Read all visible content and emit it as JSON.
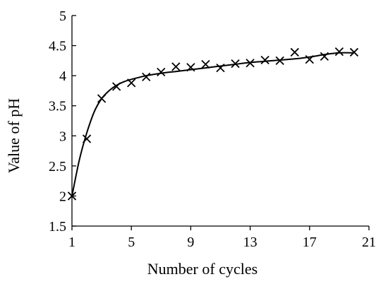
{
  "chart_data": {
    "type": "scatter",
    "title": "",
    "xlabel": "Number of cycles",
    "ylabel": "Value of pH",
    "xlim": [
      1,
      21
    ],
    "ylim": [
      1.5,
      5
    ],
    "xticks": [
      "1",
      "5",
      "9",
      "13",
      "17",
      "21"
    ],
    "yticks": [
      "1.5",
      "2",
      "2.5",
      "3",
      "3.5",
      "4",
      "4.5",
      "5"
    ],
    "grid": false,
    "legend": "none",
    "marker": "x",
    "points": [
      {
        "x": 1,
        "y": 2.0
      },
      {
        "x": 2,
        "y": 2.95
      },
      {
        "x": 3,
        "y": 3.62
      },
      {
        "x": 4,
        "y": 3.82
      },
      {
        "x": 5,
        "y": 3.88
      },
      {
        "x": 6,
        "y": 3.98
      },
      {
        "x": 7,
        "y": 4.06
      },
      {
        "x": 8,
        "y": 4.15
      },
      {
        "x": 9,
        "y": 4.14
      },
      {
        "x": 10,
        "y": 4.19
      },
      {
        "x": 11,
        "y": 4.13
      },
      {
        "x": 12,
        "y": 4.2
      },
      {
        "x": 13,
        "y": 4.21
      },
      {
        "x": 14,
        "y": 4.26
      },
      {
        "x": 15,
        "y": 4.25
      },
      {
        "x": 16,
        "y": 4.39
      },
      {
        "x": 17,
        "y": 4.27
      },
      {
        "x": 18,
        "y": 4.32
      },
      {
        "x": 19,
        "y": 4.4
      },
      {
        "x": 20,
        "y": 4.39
      }
    ],
    "trend_line": {
      "x": [
        1,
        1.5,
        2,
        2.5,
        3,
        3.5,
        4,
        4.5,
        5,
        5.5,
        6,
        7,
        8,
        9,
        10,
        11,
        12,
        13,
        14,
        15,
        16,
        17,
        18,
        19,
        20
      ],
      "y": [
        2.0,
        2.6,
        3.05,
        3.4,
        3.62,
        3.75,
        3.84,
        3.9,
        3.94,
        3.97,
        4.0,
        4.04,
        4.07,
        4.1,
        4.13,
        4.16,
        4.19,
        4.22,
        4.24,
        4.26,
        4.28,
        4.31,
        4.35,
        4.38,
        4.38
      ]
    }
  }
}
